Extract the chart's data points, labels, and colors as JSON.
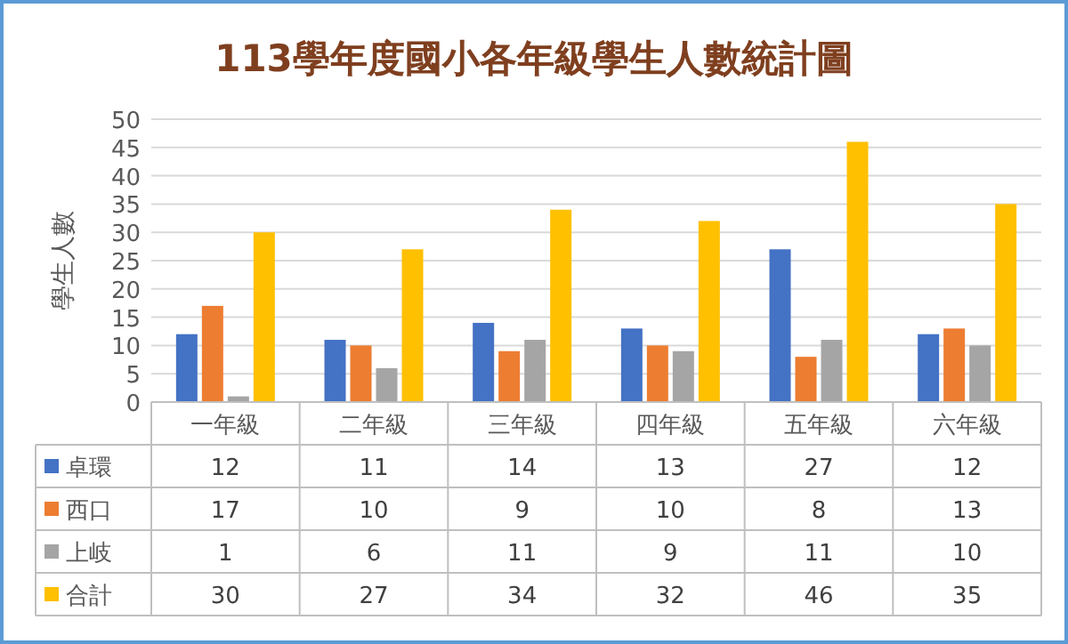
{
  "chart_data": {
    "type": "bar",
    "title": "113學年度國小各年級學生人數統計圖",
    "ylabel": "學生人數",
    "categories": [
      "一年級",
      "二年級",
      "三年級",
      "四年級",
      "五年級",
      "六年級"
    ],
    "series": [
      {
        "name": "卓環",
        "color": "#4472c4",
        "values": [
          12,
          11,
          14,
          13,
          27,
          12
        ]
      },
      {
        "name": "西口",
        "color": "#ed7d31",
        "values": [
          17,
          10,
          9,
          10,
          8,
          13
        ]
      },
      {
        "name": "上岐",
        "color": "#a5a5a5",
        "values": [
          1,
          6,
          11,
          9,
          11,
          10
        ]
      },
      {
        "name": "合計",
        "color": "#ffc000",
        "values": [
          30,
          27,
          34,
          32,
          46,
          35
        ]
      }
    ],
    "ylim": [
      0,
      50
    ],
    "yticks": [
      0,
      5,
      10,
      15,
      20,
      25,
      30,
      35,
      40,
      45,
      50
    ],
    "grid": "y",
    "legend": "bottom",
    "data_labels": true
  }
}
